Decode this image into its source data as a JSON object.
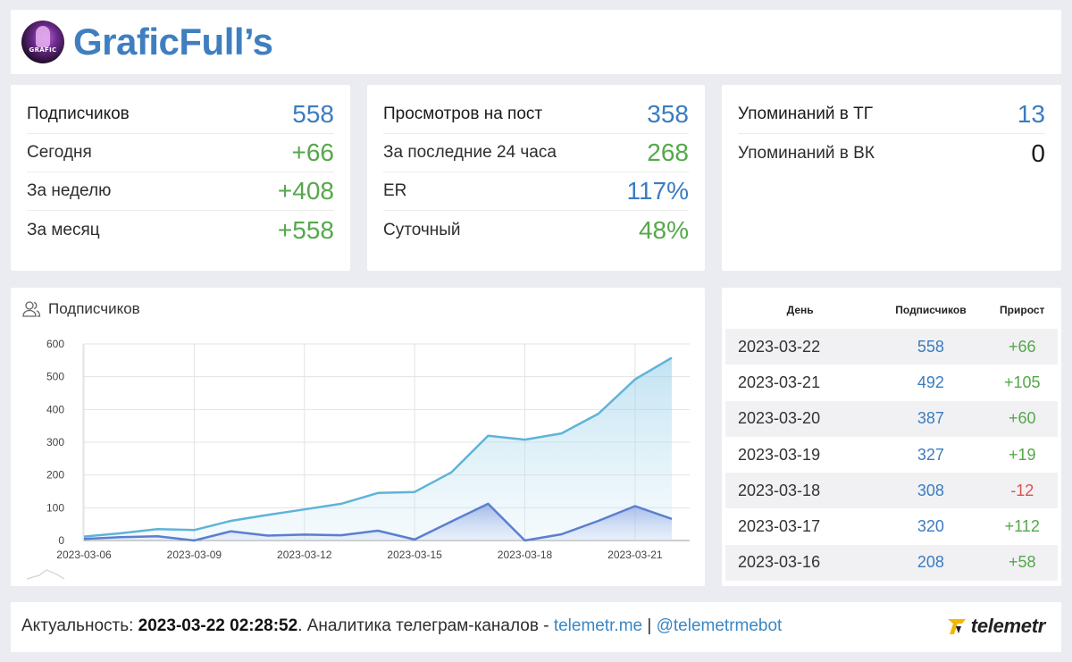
{
  "header": {
    "channel_name": "GraficFull’s",
    "avatar_badge": "GRAFIC"
  },
  "subscribers_card": {
    "rows": [
      {
        "label": "Подписчиков",
        "value": "558",
        "color": "#3a7cc0"
      },
      {
        "label": "Сегодня",
        "value": "+66",
        "color": "#55a84a"
      },
      {
        "label": "За неделю",
        "value": "+408",
        "color": "#55a84a"
      },
      {
        "label": "За месяц",
        "value": "+558",
        "color": "#55a84a"
      }
    ]
  },
  "views_card": {
    "rows": [
      {
        "label": "Просмотров на пост",
        "value": "358",
        "color": "#3a7cc0"
      },
      {
        "label": "За последние 24 часа",
        "value": "268",
        "color": "#55a84a"
      },
      {
        "label": "ER",
        "value": "117%",
        "color": "#3a7cc0"
      },
      {
        "label": "Суточный",
        "value": "48%",
        "color": "#55a84a"
      }
    ]
  },
  "mentions_card": {
    "rows": [
      {
        "label": "Упоминаний в ТГ",
        "value": "13",
        "color": "#3a7cc0"
      },
      {
        "label": "Упоминаний в ВК",
        "value": "0",
        "color": "#1b1b1b"
      }
    ]
  },
  "chart_panel": {
    "title": "Подписчиков",
    "icon": "users-icon"
  },
  "chart_data": {
    "type": "area",
    "x": [
      "2023-03-06",
      "2023-03-07",
      "2023-03-08",
      "2023-03-09",
      "2023-03-10",
      "2023-03-11",
      "2023-03-12",
      "2023-03-13",
      "2023-03-14",
      "2023-03-15",
      "2023-03-16",
      "2023-03-17",
      "2023-03-18",
      "2023-03-19",
      "2023-03-20",
      "2023-03-21",
      "2023-03-22"
    ],
    "x_tick_labels": [
      "2023-03-06",
      "2023-03-09",
      "2023-03-12",
      "2023-03-15",
      "2023-03-18",
      "2023-03-21"
    ],
    "series": [
      {
        "values": [
          12,
          22,
          35,
          32,
          60,
          78,
          95,
          112,
          145,
          148,
          208,
          320,
          308,
          327,
          387,
          492,
          558
        ],
        "color": "#5fb3d8"
      },
      {
        "values": [
          5,
          10,
          13,
          0,
          28,
          15,
          18,
          16,
          30,
          3,
          58,
          112,
          -12,
          19,
          60,
          105,
          66
        ],
        "color": "#5b7fcf"
      }
    ],
    "ylim": [
      0,
      600
    ],
    "yticks": [
      0,
      100,
      200,
      300,
      400,
      500,
      600
    ],
    "grid": true,
    "title": "Подписчиков"
  },
  "table": {
    "headers": [
      "День",
      "Подписчиков",
      "Прирост"
    ],
    "rows": [
      {
        "day": "2023-03-22",
        "subs": "558",
        "growth": "+66",
        "growth_color": "#55a84a"
      },
      {
        "day": "2023-03-21",
        "subs": "492",
        "growth": "+105",
        "growth_color": "#55a84a"
      },
      {
        "day": "2023-03-20",
        "subs": "387",
        "growth": "+60",
        "growth_color": "#55a84a"
      },
      {
        "day": "2023-03-19",
        "subs": "327",
        "growth": "+19",
        "growth_color": "#55a84a"
      },
      {
        "day": "2023-03-18",
        "subs": "308",
        "growth": "-12",
        "growth_color": "#d9534f"
      },
      {
        "day": "2023-03-17",
        "subs": "320",
        "growth": "+112",
        "growth_color": "#55a84a"
      },
      {
        "day": "2023-03-16",
        "subs": "208",
        "growth": "+58",
        "growth_color": "#55a84a"
      }
    ]
  },
  "footer": {
    "prefix": "Актуальность: ",
    "timestamp": "2023-03-22 02:28:52",
    "middle": ". Аналитика телеграм-каналов - ",
    "link1": "telemetr.me",
    "separator": " | ",
    "link2": "@telemetrmebot",
    "logo_text": "telemetr"
  }
}
